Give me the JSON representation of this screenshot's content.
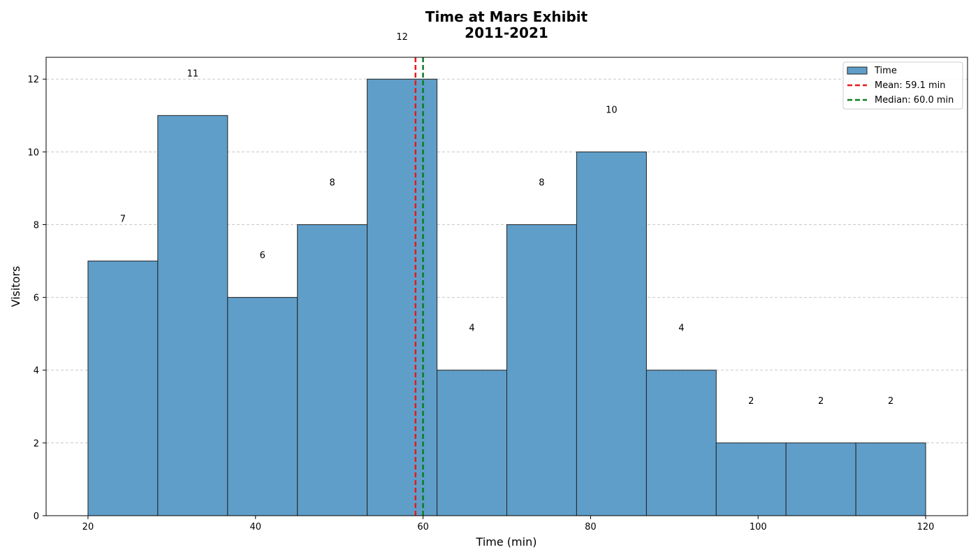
{
  "chart_data": {
    "type": "histogram",
    "title": [
      "Time at Mars Exhibit",
      "2011-2021"
    ],
    "xlabel": "Time (min)",
    "ylabel": "Visitors",
    "xlim": [
      15,
      125
    ],
    "ylim": [
      0,
      12.6
    ],
    "xticks": [
      20,
      40,
      60,
      80,
      100,
      120
    ],
    "yticks": [
      0,
      2,
      4,
      6,
      8,
      10,
      12
    ],
    "grid": "y-dashed",
    "bin_edges": [
      20,
      28.33,
      36.67,
      45,
      53.33,
      61.67,
      70,
      78.33,
      86.67,
      95,
      103.33,
      111.67,
      120
    ],
    "counts": [
      7,
      11,
      6,
      8,
      12,
      4,
      8,
      10,
      4,
      2,
      2,
      2
    ],
    "series_name": "Time",
    "bar_color": "#5f9ec9",
    "bar_edge_color": "#222222",
    "vlines": [
      {
        "label": "Mean: 59.1 min",
        "x": 59.1,
        "color": "#e8191b"
      },
      {
        "label": "Median: 60.0 min",
        "x": 60.0,
        "color": "#0a7f1f"
      }
    ],
    "legend_position": "upper right"
  }
}
